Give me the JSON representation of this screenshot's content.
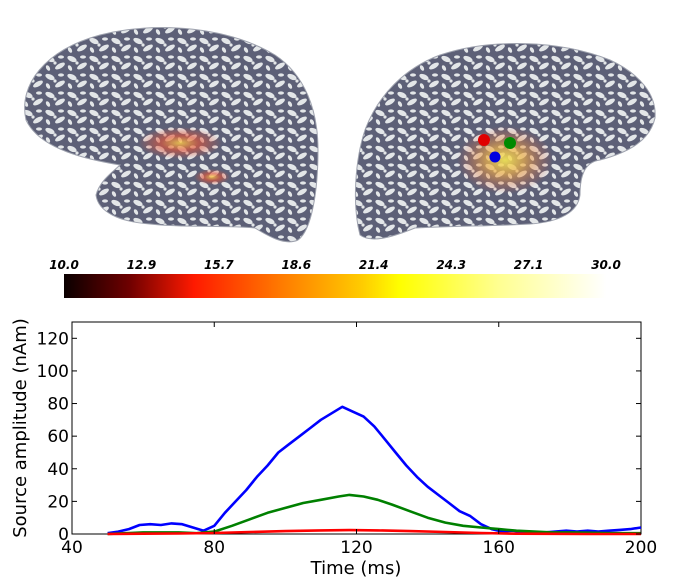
{
  "colorbar": {
    "ticks": [
      "10.0",
      "12.9",
      "15.7",
      "18.6",
      "21.4",
      "24.3",
      "27.1",
      "30.0"
    ],
    "min": 10.0,
    "max": 30.0,
    "colormap": "hot"
  },
  "chart_data": {
    "type": "line",
    "title": "",
    "xlabel": "Time (ms)",
    "ylabel": "Source amplitude (nAm)",
    "xlim": [
      40,
      200
    ],
    "ylim": [
      0,
      130
    ],
    "xticks": [
      40,
      80,
      120,
      160,
      200
    ],
    "yticks": [
      0,
      20,
      40,
      60,
      80,
      100,
      120
    ],
    "grid": false,
    "series": [
      {
        "color": "#0000ff",
        "x": [
          50,
          53,
          56,
          59,
          62,
          65,
          68,
          71,
          74,
          77,
          80,
          83,
          86,
          89,
          92,
          95,
          98,
          101,
          104,
          107,
          110,
          113,
          116,
          119,
          122,
          125,
          128,
          131,
          134,
          137,
          140,
          143,
          146,
          149,
          152,
          155,
          158,
          161,
          164,
          167,
          170,
          173,
          176,
          179,
          182,
          185,
          188,
          191,
          194,
          197,
          200
        ],
        "values": [
          0.5,
          1.5,
          3,
          5.5,
          6,
          5.5,
          6.5,
          6,
          4,
          2,
          5,
          13,
          20,
          27,
          35,
          42,
          50,
          55,
          60,
          65,
          70,
          74,
          78,
          75,
          72,
          66,
          58,
          50,
          42,
          35,
          29,
          24,
          19,
          14,
          11,
          6,
          3,
          1.5,
          2,
          1,
          0.5,
          1,
          1.5,
          2,
          1.5,
          2,
          1.5,
          2,
          2.5,
          3,
          4
        ]
      },
      {
        "color": "#008000",
        "x": [
          50,
          55,
          60,
          65,
          70,
          75,
          80,
          85,
          90,
          95,
          100,
          105,
          110,
          115,
          118,
          122,
          126,
          130,
          135,
          140,
          145,
          150,
          155,
          160,
          165,
          170,
          175,
          180,
          185,
          190,
          195,
          200
        ],
        "values": [
          0,
          0.5,
          1,
          1,
          1,
          0.5,
          1.5,
          5,
          9,
          13,
          16,
          19,
          21,
          23,
          24,
          23,
          21,
          18,
          14,
          10,
          7,
          5,
          4,
          3,
          2,
          1.5,
          1,
          1,
          0.8,
          0.6,
          0.5,
          0.5
        ]
      },
      {
        "color": "#ff0000",
        "x": [
          50,
          60,
          70,
          80,
          90,
          100,
          110,
          118,
          126,
          135,
          145,
          155,
          165,
          175,
          185,
          200
        ],
        "values": [
          0,
          0.2,
          0.3,
          0.6,
          1.2,
          1.8,
          2.2,
          2.4,
          2.2,
          1.8,
          1.2,
          0.6,
          0.2,
          0.1,
          0,
          0
        ]
      }
    ]
  }
}
